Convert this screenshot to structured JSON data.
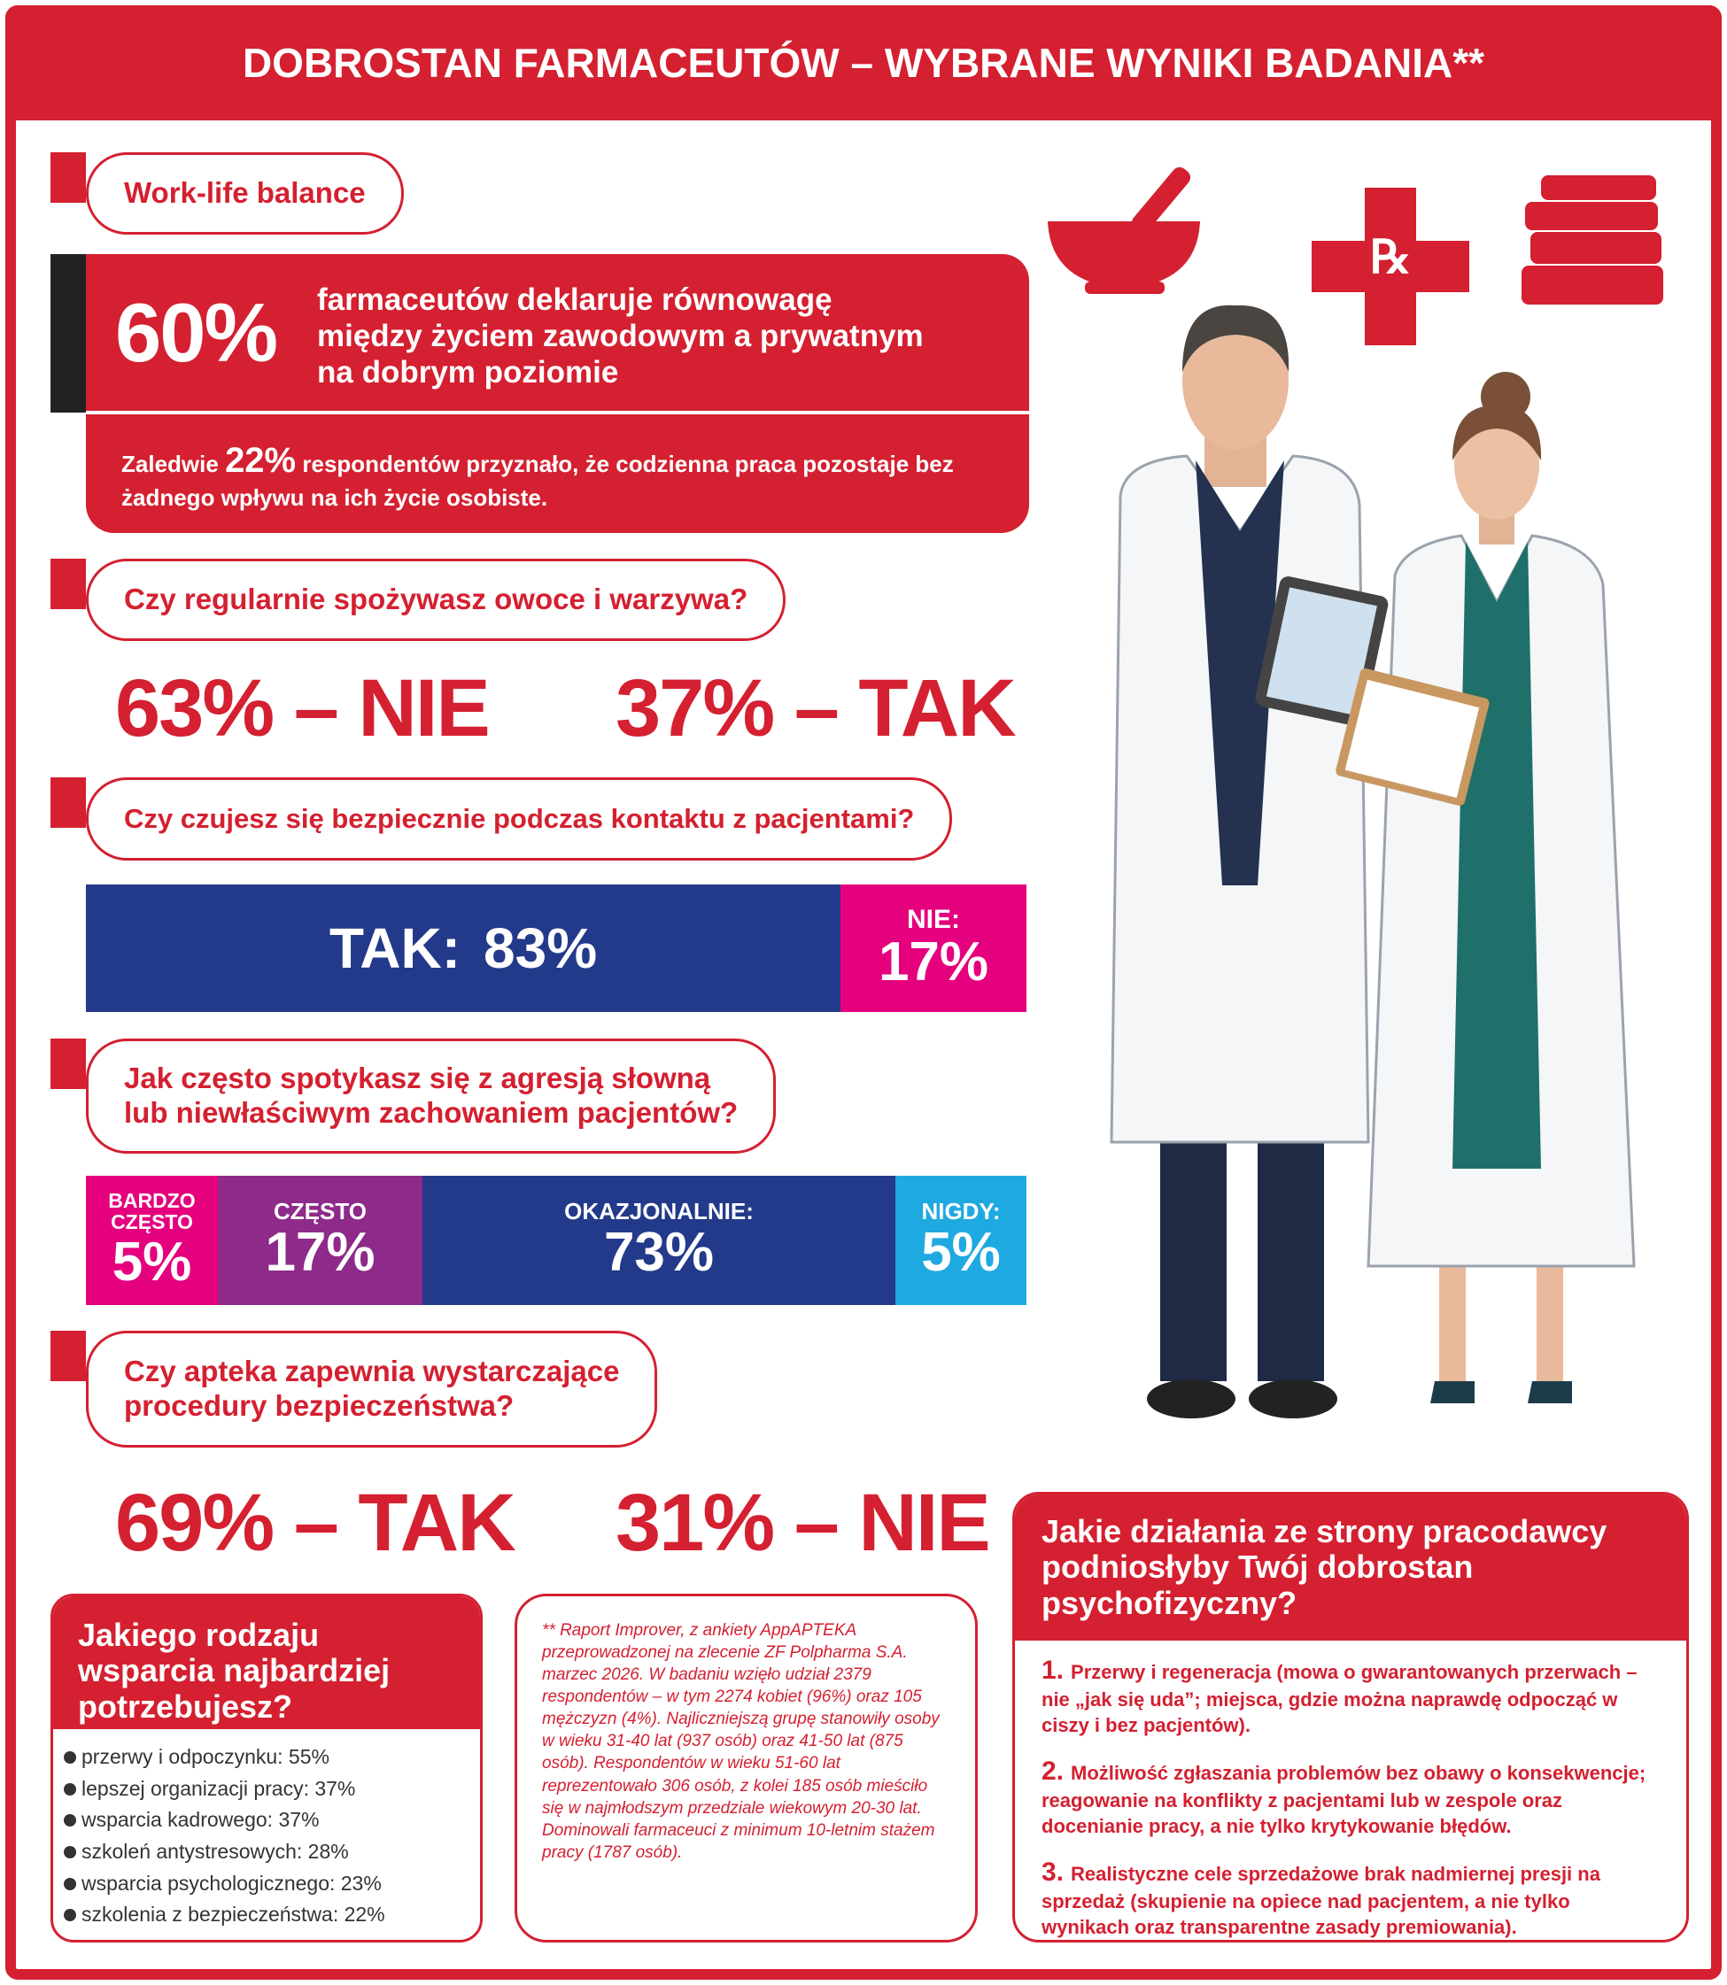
{
  "header": {
    "title": "DOBROSTAN FARMACEUTÓW – WYBRANE WYNIKI BADANIA**"
  },
  "work_life": {
    "label": "Work-life balance",
    "main_value": "60%",
    "main_lines": [
      "farmaceutów deklaruje równowagę",
      "między życiem zawodowym a prywatnym",
      "na dobrym poziomie"
    ],
    "sub_prefix": "Zaledwie",
    "sub_value": "22%",
    "sub_text": "respondentów przyznało, że codzienna praca pozostaje bez żadnego wpływu na ich życie osobiste."
  },
  "q_food": {
    "question": "Czy regularnie spożywasz owoce i warzywa?",
    "answers": [
      {
        "value": "63%",
        "label": "– NIE"
      },
      {
        "value": "37%",
        "label": "– TAK"
      }
    ]
  },
  "q_safety": {
    "question": "Czy czujesz się bezpiecznie podczas kontaktu z pacjentami?",
    "segments": [
      {
        "label": "TAK:",
        "value": "83%"
      },
      {
        "label": "NIE:",
        "value": "17%"
      }
    ]
  },
  "q_aggression": {
    "question_lines": [
      "Jak często spotykasz się z agresją słowną",
      "lub niewłaściwym zachowaniem pacjentów?"
    ],
    "segments": [
      {
        "label": "BARDZO CZĘSTO",
        "value": "5%"
      },
      {
        "label": "CZĘSTO",
        "value": "17%"
      },
      {
        "label": "OKAZJONALNIE:",
        "value": "73%"
      },
      {
        "label": "NIGDY:",
        "value": "5%"
      }
    ]
  },
  "q_procedures": {
    "question_lines": [
      "Czy apteka zapewnia wystarczające",
      "procedury bezpieczeństwa?"
    ],
    "answers": [
      {
        "value": "69%",
        "label": "– TAK"
      },
      {
        "value": "31%",
        "label": "– NIE"
      }
    ]
  },
  "support": {
    "title": "Jakiego rodzaju wsparcia najbardziej potrzebujesz?",
    "items": [
      "przerwy i odpoczynku: 55%",
      "lepszej organizacji pracy: 37%",
      "wsparcia kadrowego: 37%",
      "szkoleń antystresowych: 28%",
      "wsparcia psychologicznego: 23%",
      "szkolenia z bezpieczeństwa: 22%"
    ]
  },
  "footnote": {
    "text": "** Raport Improver, z ankiety AppAPTEKA przeprowadzonej na zlecenie ZF Polpharma S.A. marzec 2026. W badaniu wzięło udział 2379 respondentów – w tym 2274 kobiet (96%) oraz 105 mężczyzn (4%). Najliczniejszą grupę stanowiły osoby w wieku 31-40 lat (937 osób) oraz 41-50 lat (875 osób). Respondentów w wieku 51-60 lat reprezentowało 306 osób, z kolei 185 osób mieściło się w najmłodszym przedziale wiekowym 20-30 lat. Dominowali farmaceuci z minimum 10-letnim stażem pracy (1787 osób)."
  },
  "employer": {
    "title": "Jakie działania ze strony pracodawcy podniosłyby Twój dobrostan psychofizyczny?",
    "items": [
      {
        "number": "1.",
        "text": "Przerwy i regeneracja (mowa o gwarantowanych przerwach – nie „jak się uda”; miejsca, gdzie można naprawdę odpocząć w ciszy i bez pacjentów)."
      },
      {
        "number": "2.",
        "text": "Możliwość zgłaszania problemów bez obawy o konsekwencje; reagowanie na konflikty z pacjentami lub w zespole oraz docenianie pracy, a nie tylko krytykowanie błędów."
      },
      {
        "number": "3.",
        "text": "Realistyczne cele sprzedażowe brak nadmiernej presji na sprzedaż (skupienie na opiece nad pacjentem, a nie tylko wynikach oraz transparentne zasady premiowania)."
      }
    ]
  }
}
